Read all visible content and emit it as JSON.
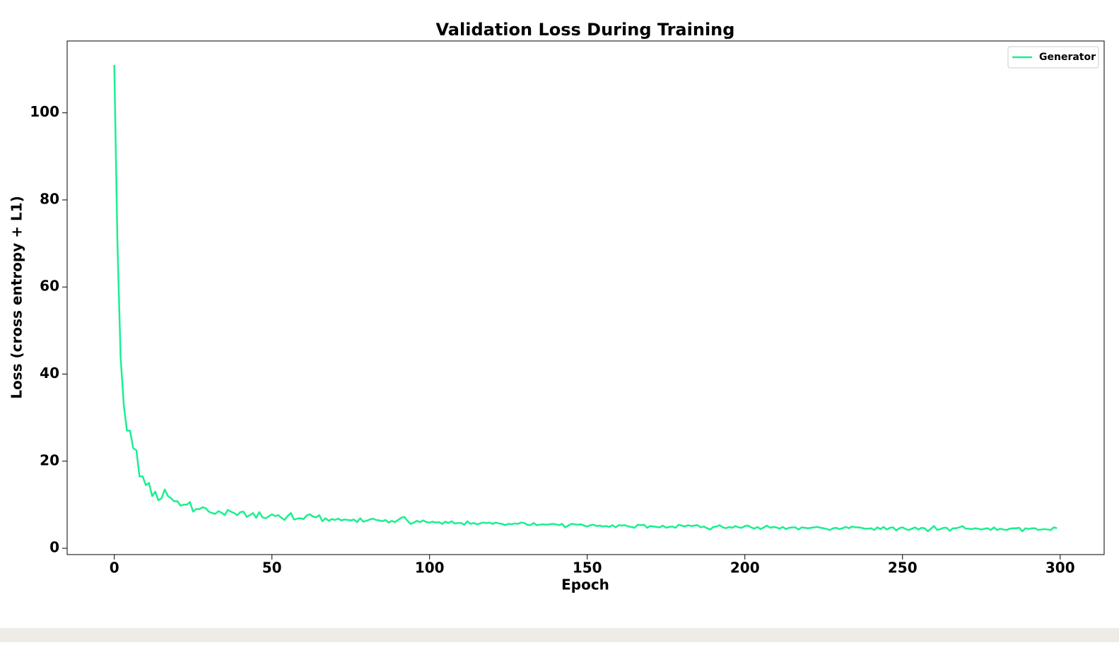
{
  "chart_data": {
    "type": "line",
    "title": "Validation Loss During Training",
    "x_label": "Epoch",
    "y_label": "Loss (cross entropy + L1)",
    "xlim": [
      -14.95,
      313.95
    ],
    "xticks": [
      0,
      50,
      100,
      150,
      200,
      250,
      300
    ],
    "ylim": [
      -1.45,
      116.5
    ],
    "yticks": [
      0,
      20,
      40,
      60,
      80,
      100
    ],
    "legend": "upper right",
    "grid": false,
    "x": [
      0,
      1,
      2,
      3,
      4,
      5,
      6,
      7,
      8,
      9,
      10,
      11,
      12,
      13,
      14,
      15,
      16,
      17,
      18,
      19,
      20,
      21,
      22,
      23,
      24,
      25,
      26,
      27,
      28,
      29,
      30,
      31,
      32,
      33,
      34,
      35,
      36,
      37,
      38,
      39,
      40,
      41,
      42,
      43,
      44,
      45,
      46,
      47,
      48,
      49,
      50,
      51,
      52,
      53,
      54,
      55,
      56,
      57,
      58,
      59,
      60,
      61,
      62,
      63,
      64,
      65,
      66,
      67,
      68,
      69,
      70,
      71,
      72,
      73,
      74,
      75,
      76,
      77,
      78,
      79,
      80,
      81,
      82,
      83,
      84,
      85,
      86,
      87,
      88,
      89,
      90,
      91,
      92,
      93,
      94,
      95,
      96,
      97,
      98,
      99,
      100,
      101,
      102,
      103,
      104,
      105,
      106,
      107,
      108,
      109,
      110,
      111,
      112,
      113,
      114,
      115,
      116,
      117,
      118,
      119,
      120,
      121,
      122,
      123,
      124,
      125,
      126,
      127,
      128,
      129,
      130,
      131,
      132,
      133,
      134,
      135,
      136,
      137,
      138,
      139,
      140,
      141,
      142,
      143,
      144,
      145,
      146,
      147,
      148,
      149,
      150,
      151,
      152,
      153,
      154,
      155,
      156,
      157,
      158,
      159,
      160,
      161,
      162,
      163,
      164,
      165,
      166,
      167,
      168,
      169,
      170,
      171,
      172,
      173,
      174,
      175,
      176,
      177,
      178,
      179,
      180,
      181,
      182,
      183,
      184,
      185,
      186,
      187,
      188,
      189,
      190,
      191,
      192,
      193,
      194,
      195,
      196,
      197,
      198,
      199,
      200,
      201,
      202,
      203,
      204,
      205,
      206,
      207,
      208,
      209,
      210,
      211,
      212,
      213,
      214,
      215,
      216,
      217,
      218,
      219,
      220,
      221,
      222,
      223,
      224,
      225,
      226,
      227,
      228,
      229,
      230,
      231,
      232,
      233,
      234,
      235,
      236,
      237,
      238,
      239,
      240,
      241,
      242,
      243,
      244,
      245,
      246,
      247,
      248,
      249,
      250,
      251,
      252,
      253,
      254,
      255,
      256,
      257,
      258,
      259,
      260,
      261,
      262,
      263,
      264,
      265,
      266,
      267,
      268,
      269,
      270,
      271,
      272,
      273,
      274,
      275,
      276,
      277,
      278,
      279,
      280,
      281,
      282,
      283,
      284,
      285,
      286,
      287,
      288,
      289,
      290,
      291,
      292,
      293,
      294,
      295,
      296,
      297,
      298,
      299
    ],
    "series": [
      {
        "name": "Generator",
        "color": "#19f08e",
        "values": [
          111,
          70,
          44,
          33,
          27,
          27,
          23,
          22.5,
          16.5,
          16.5,
          14.5,
          15,
          12,
          13,
          11,
          11.5,
          13.5,
          12,
          11.5,
          10.8,
          10.8,
          9.8,
          10,
          10,
          10.6,
          8.4,
          9,
          9,
          9.4,
          9.2,
          8.4,
          8.1,
          7.9,
          8.5,
          8.2,
          7.6,
          8.8,
          8.4,
          8.1,
          7.6,
          8.3,
          8.4,
          7.2,
          7.6,
          8.1,
          7.0,
          8.3,
          7.1,
          6.9,
          7.3,
          7.8,
          7.4,
          7.6,
          7.0,
          6.5,
          7.4,
          8.1,
          6.6,
          6.8,
          6.9,
          6.7,
          7.5,
          7.8,
          7.3,
          7.1,
          7.6,
          6.2,
          6.9,
          6.3,
          6.7,
          6.5,
          6.8,
          6.4,
          6.6,
          6.5,
          6.4,
          6.6,
          6.0,
          6.9,
          6.1,
          6.3,
          6.6,
          6.8,
          6.5,
          6.4,
          6.2,
          6.5,
          5.9,
          6.3,
          6.0,
          6.5,
          7.0,
          7.2,
          6.3,
          5.6,
          5.9,
          6.3,
          6.0,
          6.4,
          6.0,
          5.9,
          6.1,
          5.9,
          6.0,
          5.6,
          6.1,
          5.8,
          6.2,
          5.7,
          5.8,
          5.8,
          5.4,
          6.2,
          5.6,
          5.8,
          5.5,
          5.7,
          5.9,
          5.8,
          5.9,
          5.6,
          5.9,
          5.7,
          5.6,
          5.3,
          5.6,
          5.5,
          5.7,
          5.6,
          5.9,
          5.8,
          5.4,
          5.3,
          5.8,
          5.3,
          5.4,
          5.5,
          5.4,
          5.5,
          5.6,
          5.5,
          5.3,
          5.6,
          4.8,
          5.2,
          5.6,
          5.5,
          5.4,
          5.5,
          5.2,
          5.0,
          5.3,
          5.4,
          5.1,
          5.2,
          5.0,
          5.1,
          4.9,
          5.3,
          4.8,
          5.3,
          5.2,
          5.3,
          5.0,
          4.9,
          4.7,
          5.4,
          5.3,
          5.4,
          4.7,
          5.1,
          5.0,
          4.9,
          4.8,
          5.2,
          4.7,
          4.9,
          5.0,
          4.7,
          5.4,
          5.2,
          5.0,
          5.3,
          5.1,
          5.2,
          5.3,
          4.8,
          5.0,
          4.6,
          4.3,
          4.9,
          5.0,
          5.3,
          4.8,
          4.6,
          4.9,
          4.7,
          5.1,
          4.8,
          4.7,
          5.1,
          5.2,
          4.8,
          4.5,
          4.9,
          4.4,
          4.8,
          5.2,
          4.7,
          4.9,
          4.8,
          4.5,
          4.9,
          4.4,
          4.7,
          4.8,
          4.8,
          4.3,
          4.8,
          4.7,
          4.6,
          4.7,
          4.8,
          4.9,
          4.7,
          4.6,
          4.4,
          4.2,
          4.6,
          4.7,
          4.4,
          4.6,
          4.9,
          4.6,
          5.0,
          4.8,
          4.8,
          4.7,
          4.5,
          4.5,
          4.6,
          4.2,
          4.8,
          4.4,
          4.9,
          4.3,
          4.7,
          4.8,
          4.1,
          4.6,
          4.8,
          4.4,
          4.2,
          4.5,
          4.8,
          4.3,
          4.7,
          4.6,
          3.9,
          4.5,
          5.1,
          4.2,
          4.4,
          4.7,
          4.7,
          4.0,
          4.6,
          4.6,
          4.8,
          5.1,
          4.5,
          4.5,
          4.4,
          4.6,
          4.5,
          4.3,
          4.5,
          4.6,
          4.2,
          4.8,
          4.2,
          4.5,
          4.3,
          4.2,
          4.5,
          4.6,
          4.6,
          4.7,
          3.9,
          4.6,
          4.4,
          4.6,
          4.6,
          4.2,
          4.3,
          4.4,
          4.3,
          4.2,
          4.8,
          4.6
        ]
      }
    ]
  }
}
